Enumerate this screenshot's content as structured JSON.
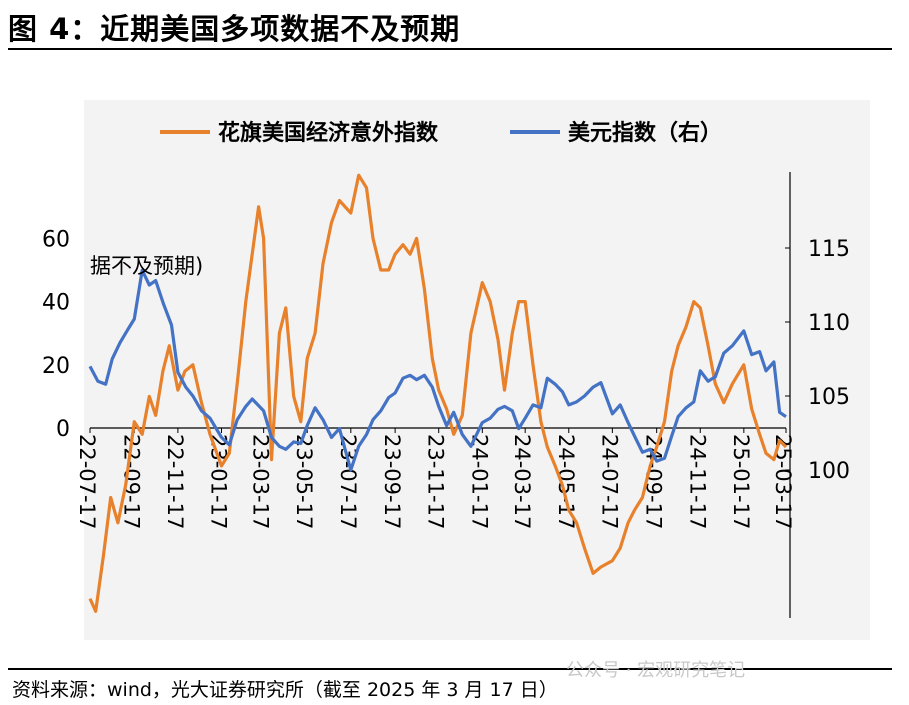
{
  "title": "图 4：近期美国多项数据不及预期",
  "source": "资料来源：wind，光大证券研究所（截至 2025 年 3 月 17 日）",
  "watermark": "公众号 · 宏观研究笔记",
  "colors": {
    "esi": "#e8812b",
    "dxy": "#4472c4",
    "axis": "#000000",
    "plot_bg": "#f3f3f3"
  },
  "chart_data": {
    "type": "line",
    "annotation": "据不及预期)",
    "x_ticks": [
      "22-07-17",
      "22-09-17",
      "22-11-17",
      "23-01-17",
      "23-03-17",
      "23-05-17",
      "23-07-17",
      "23-09-17",
      "23-11-17",
      "24-01-17",
      "24-03-17",
      "24-05-17",
      "24-07-17",
      "24-09-17",
      "24-11-17",
      "25-01-17",
      "25-03-17"
    ],
    "left_axis": {
      "ticks": [
        0,
        20,
        40,
        60
      ],
      "range": [
        -60,
        80
      ]
    },
    "right_axis": {
      "ticks": [
        100,
        105,
        110,
        115
      ],
      "range": [
        90,
        120
      ]
    },
    "legend": {
      "position": "top"
    },
    "series": [
      {
        "name": "花旗美国经济意外指数",
        "axis": "left",
        "color": "#e8812b",
        "points": [
          [
            "22-07-17",
            -54
          ],
          [
            "22-07-25",
            -58
          ],
          [
            "22-08-05",
            -40
          ],
          [
            "22-08-15",
            -22
          ],
          [
            "22-08-25",
            -30
          ],
          [
            "22-09-05",
            -18
          ],
          [
            "22-09-17",
            2
          ],
          [
            "22-09-28",
            -2
          ],
          [
            "22-10-08",
            10
          ],
          [
            "22-10-17",
            4
          ],
          [
            "22-10-27",
            18
          ],
          [
            "22-11-05",
            26
          ],
          [
            "22-11-17",
            12
          ],
          [
            "22-11-27",
            18
          ],
          [
            "22-12-08",
            20
          ],
          [
            "22-12-20",
            8
          ],
          [
            "23-01-01",
            -2
          ],
          [
            "23-01-17",
            -12
          ],
          [
            "23-01-28",
            -8
          ],
          [
            "23-02-08",
            14
          ],
          [
            "23-02-20",
            40
          ],
          [
            "23-03-01",
            55
          ],
          [
            "23-03-10",
            70
          ],
          [
            "23-03-17",
            60
          ],
          [
            "23-03-28",
            -10
          ],
          [
            "23-04-08",
            30
          ],
          [
            "23-04-17",
            38
          ],
          [
            "23-04-28",
            10
          ],
          [
            "23-05-08",
            2
          ],
          [
            "23-05-17",
            22
          ],
          [
            "23-05-28",
            30
          ],
          [
            "23-06-08",
            52
          ],
          [
            "23-06-20",
            65
          ],
          [
            "23-07-01",
            72
          ],
          [
            "23-07-17",
            68
          ],
          [
            "23-07-28",
            80
          ],
          [
            "23-08-08",
            76
          ],
          [
            "23-08-17",
            60
          ],
          [
            "23-08-28",
            50
          ],
          [
            "23-09-08",
            50
          ],
          [
            "23-09-17",
            55
          ],
          [
            "23-09-28",
            58
          ],
          [
            "23-10-08",
            55
          ],
          [
            "23-10-17",
            60
          ],
          [
            "23-10-28",
            44
          ],
          [
            "23-11-08",
            22
          ],
          [
            "23-11-17",
            12
          ],
          [
            "23-11-28",
            6
          ],
          [
            "23-12-08",
            -2
          ],
          [
            "23-12-20",
            4
          ],
          [
            "24-01-01",
            30
          ],
          [
            "24-01-17",
            46
          ],
          [
            "24-01-28",
            40
          ],
          [
            "24-02-08",
            28
          ],
          [
            "24-02-17",
            12
          ],
          [
            "24-02-28",
            30
          ],
          [
            "24-03-08",
            40
          ],
          [
            "24-03-17",
            40
          ],
          [
            "24-03-28",
            20
          ],
          [
            "24-04-08",
            2
          ],
          [
            "24-04-17",
            -6
          ],
          [
            "24-04-28",
            -12
          ],
          [
            "24-05-08",
            -18
          ],
          [
            "24-05-17",
            -26
          ],
          [
            "24-05-28",
            -30
          ],
          [
            "24-06-08",
            -38
          ],
          [
            "24-06-20",
            -46
          ],
          [
            "24-07-01",
            -44
          ],
          [
            "24-07-17",
            -42
          ],
          [
            "24-07-28",
            -38
          ],
          [
            "24-08-08",
            -30
          ],
          [
            "24-08-17",
            -26
          ],
          [
            "24-08-28",
            -22
          ],
          [
            "24-09-08",
            -12
          ],
          [
            "24-09-17",
            -6
          ],
          [
            "24-09-28",
            2
          ],
          [
            "24-10-08",
            18
          ],
          [
            "24-10-17",
            26
          ],
          [
            "24-10-28",
            32
          ],
          [
            "24-11-08",
            40
          ],
          [
            "24-11-17",
            38
          ],
          [
            "24-11-28",
            26
          ],
          [
            "24-12-08",
            14
          ],
          [
            "24-12-20",
            8
          ],
          [
            "25-01-01",
            14
          ],
          [
            "25-01-17",
            20
          ],
          [
            "25-01-28",
            6
          ],
          [
            "25-02-08",
            -2
          ],
          [
            "25-02-17",
            -8
          ],
          [
            "25-02-28",
            -10
          ],
          [
            "25-03-08",
            -4
          ],
          [
            "25-03-17",
            -6
          ]
        ]
      },
      {
        "name": "美元指数（右）",
        "axis": "right",
        "color": "#4472c4",
        "points": [
          [
            "22-07-17",
            107
          ],
          [
            "22-07-28",
            106
          ],
          [
            "22-08-08",
            105.8
          ],
          [
            "22-08-17",
            107.5
          ],
          [
            "22-08-28",
            108.6
          ],
          [
            "22-09-08",
            109.5
          ],
          [
            "22-09-17",
            110.2
          ],
          [
            "22-09-28",
            113.5
          ],
          [
            "22-10-08",
            112.5
          ],
          [
            "22-10-17",
            112.8
          ],
          [
            "22-10-28",
            111.2
          ],
          [
            "22-11-08",
            109.8
          ],
          [
            "22-11-17",
            106.6
          ],
          [
            "22-11-28",
            105.6
          ],
          [
            "22-12-08",
            105.0
          ],
          [
            "22-12-20",
            104.0
          ],
          [
            "23-01-01",
            103.5
          ],
          [
            "23-01-17",
            102.2
          ],
          [
            "23-01-28",
            101.7
          ],
          [
            "23-02-08",
            103.4
          ],
          [
            "23-02-20",
            104.3
          ],
          [
            "23-03-01",
            104.8
          ],
          [
            "23-03-17",
            104.0
          ],
          [
            "23-03-28",
            102.2
          ],
          [
            "23-04-08",
            101.6
          ],
          [
            "23-04-17",
            101.4
          ],
          [
            "23-04-28",
            101.9
          ],
          [
            "23-05-08",
            101.8
          ],
          [
            "23-05-17",
            103.0
          ],
          [
            "23-05-28",
            104.2
          ],
          [
            "23-06-08",
            103.4
          ],
          [
            "23-06-20",
            102.2
          ],
          [
            "23-07-01",
            102.8
          ],
          [
            "23-07-17",
            100.0
          ],
          [
            "23-07-28",
            101.6
          ],
          [
            "23-08-08",
            102.4
          ],
          [
            "23-08-17",
            103.4
          ],
          [
            "23-08-28",
            104.0
          ],
          [
            "23-09-08",
            104.9
          ],
          [
            "23-09-17",
            105.2
          ],
          [
            "23-09-28",
            106.2
          ],
          [
            "23-10-08",
            106.4
          ],
          [
            "23-10-17",
            106.1
          ],
          [
            "23-10-28",
            106.4
          ],
          [
            "23-11-08",
            105.6
          ],
          [
            "23-11-17",
            104.3
          ],
          [
            "23-11-28",
            103.0
          ],
          [
            "23-12-08",
            103.9
          ],
          [
            "23-12-20",
            102.4
          ],
          [
            "24-01-01",
            101.6
          ],
          [
            "24-01-17",
            103.2
          ],
          [
            "24-01-28",
            103.5
          ],
          [
            "24-02-08",
            104.1
          ],
          [
            "24-02-17",
            104.3
          ],
          [
            "24-02-28",
            104.0
          ],
          [
            "24-03-08",
            102.8
          ],
          [
            "24-03-17",
            103.5
          ],
          [
            "24-03-28",
            104.4
          ],
          [
            "24-04-08",
            104.2
          ],
          [
            "24-04-17",
            106.2
          ],
          [
            "24-04-28",
            105.8
          ],
          [
            "24-05-08",
            105.3
          ],
          [
            "24-05-17",
            104.4
          ],
          [
            "24-05-28",
            104.6
          ],
          [
            "24-06-08",
            105.0
          ],
          [
            "24-06-20",
            105.6
          ],
          [
            "24-07-01",
            105.9
          ],
          [
            "24-07-17",
            103.8
          ],
          [
            "24-07-28",
            104.4
          ],
          [
            "24-08-08",
            103.2
          ],
          [
            "24-08-17",
            102.3
          ],
          [
            "24-08-28",
            101.2
          ],
          [
            "24-09-08",
            101.4
          ],
          [
            "24-09-17",
            100.6
          ],
          [
            "24-09-28",
            100.8
          ],
          [
            "24-10-08",
            102.3
          ],
          [
            "24-10-17",
            103.6
          ],
          [
            "24-10-28",
            104.2
          ],
          [
            "24-11-08",
            104.6
          ],
          [
            "24-11-17",
            106.7
          ],
          [
            "24-11-28",
            106.0
          ],
          [
            "24-12-08",
            106.3
          ],
          [
            "24-12-20",
            107.9
          ],
          [
            "25-01-01",
            108.4
          ],
          [
            "25-01-17",
            109.4
          ],
          [
            "25-01-28",
            107.8
          ],
          [
            "25-02-08",
            108.0
          ],
          [
            "25-02-17",
            106.7
          ],
          [
            "25-02-28",
            107.3
          ],
          [
            "25-03-08",
            103.9
          ],
          [
            "25-03-17",
            103.6
          ]
        ]
      }
    ]
  }
}
